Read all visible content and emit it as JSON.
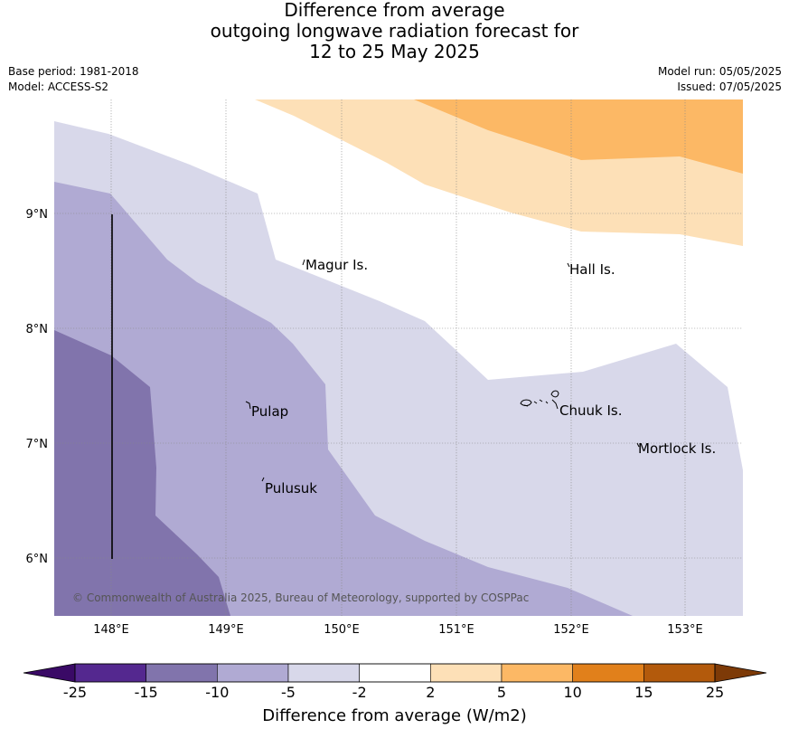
{
  "title": {
    "line1": "Difference from average",
    "line2": "outgoing longwave radiation forecast for",
    "line3": "12 to 25 May 2025"
  },
  "meta": {
    "base_period": "Base period: 1981-2018",
    "model": "Model: ACCESS-S2",
    "model_run": "Model run: 05/05/2025",
    "issued": "Issued: 07/05/2025"
  },
  "map": {
    "lon_labels": [
      "148°E",
      "149°E",
      "150°E",
      "151°E",
      "152°E",
      "153°E"
    ],
    "lat_labels": [
      "9°N",
      "8°N",
      "7°N",
      "6°N"
    ],
    "places": [
      "Magur Is.",
      "Hall Is.",
      "Pulap",
      "Chuuk Is.",
      "Mortlock Is.",
      "Pulusuk"
    ],
    "copyright": "© Commonwealth of Australia 2025, Bureau of Meteorology, supported by COSPPac",
    "fill_colors": {
      "purple_dark": "#8174ac",
      "purple_mid": "#b0aad3",
      "purple_light": "#d8d8ea",
      "orange_light": "#fde0b7",
      "orange_mid": "#fcb865"
    }
  },
  "colorbar": {
    "labels": [
      "-25",
      "-15",
      "-10",
      "-5",
      "-2",
      "2",
      "5",
      "10",
      "15",
      "25"
    ],
    "colors": [
      "#54288f",
      "#8174ac",
      "#b0aad3",
      "#d8d8ea",
      "#ffffff",
      "#fde0b7",
      "#fcb865",
      "#e1801b",
      "#b35a0c"
    ],
    "under_color": "#3a0a66",
    "over_color": "#7d3a07",
    "title": "Difference from average (W/m2)"
  }
}
